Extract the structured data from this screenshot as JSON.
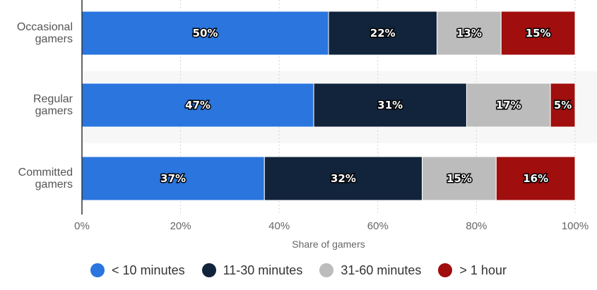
{
  "chart_data": {
    "type": "bar",
    "orientation": "horizontal",
    "stacked": true,
    "categories": [
      "Occasional gamers",
      "Regular gamers",
      "Committed gamers"
    ],
    "category_lines": [
      [
        "Occasional",
        "gamers"
      ],
      [
        "Regular",
        "gamers"
      ],
      [
        "Committed",
        "gamers"
      ]
    ],
    "series": [
      {
        "name": "< 10 minutes",
        "color": "#2a75de",
        "values": [
          50,
          47,
          37
        ]
      },
      {
        "name": "11-30 minutes",
        "color": "#12243b",
        "values": [
          22,
          31,
          32
        ]
      },
      {
        "name": "31-60 minutes",
        "color": "#bcbcbc",
        "values": [
          13,
          17,
          15
        ]
      },
      {
        "name": "> 1 hour",
        "color": "#a00e0e",
        "values": [
          15,
          5,
          16
        ]
      }
    ],
    "xlabel": "Share of gamers",
    "xlim": [
      0,
      100
    ],
    "xticks": [
      "0%",
      "20%",
      "40%",
      "60%",
      "80%",
      "100%"
    ],
    "value_suffix": "%",
    "grid": true,
    "legend_position": "bottom"
  }
}
